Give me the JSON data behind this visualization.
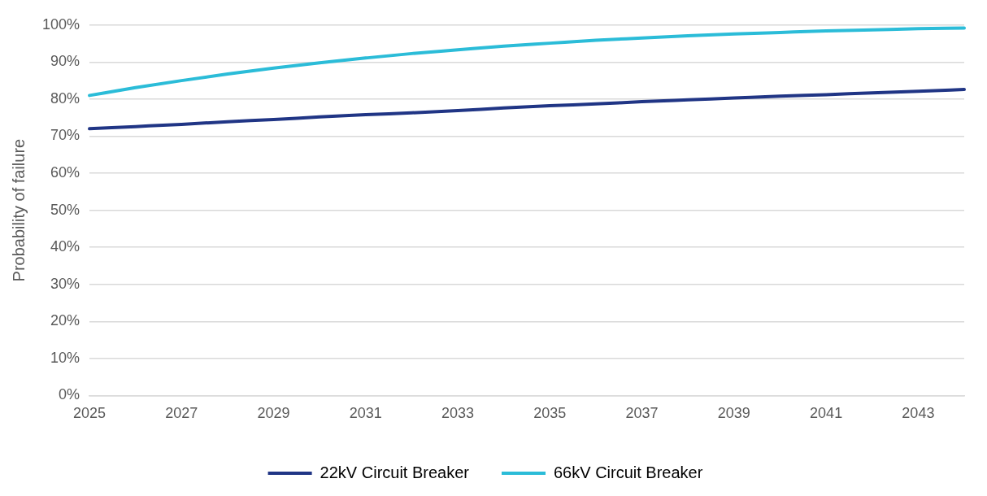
{
  "chart_data": {
    "type": "line",
    "ylabel": "Probability of failure",
    "categories": [
      "2025",
      null,
      "2027",
      null,
      "2029",
      null,
      "2031",
      null,
      "2033",
      null,
      "2035",
      null,
      "2037",
      null,
      "2039",
      null,
      "2041",
      null,
      "2043",
      null
    ],
    "series": [
      {
        "name": "22kV Circuit Breaker",
        "color": "#203585",
        "values": [
          72,
          72.6,
          73.2,
          73.9,
          74.5,
          75.2,
          75.8,
          76.3,
          76.9,
          77.6,
          78.2,
          78.7,
          79.3,
          79.8,
          80.3,
          80.8,
          81.2,
          81.7,
          82.1,
          82.6
        ]
      },
      {
        "name": "66kV Circuit Breaker",
        "color": "#2bbcd8",
        "values": [
          81,
          83.1,
          85,
          86.8,
          88.4,
          89.8,
          91.1,
          92.3,
          93.3,
          94.3,
          95.1,
          95.9,
          96.5,
          97.1,
          97.6,
          98,
          98.4,
          98.7,
          99,
          99.2
        ]
      }
    ],
    "ylim": [
      0,
      100
    ],
    "yticks": [
      {
        "value": 0,
        "label": "0%"
      },
      {
        "value": 10,
        "label": "10%"
      },
      {
        "value": 20,
        "label": "20%"
      },
      {
        "value": 30,
        "label": "30%"
      },
      {
        "value": 40,
        "label": "40%"
      },
      {
        "value": 50,
        "label": "50%"
      },
      {
        "value": 60,
        "label": "60%"
      },
      {
        "value": 70,
        "label": "70%"
      },
      {
        "value": 80,
        "label": "80%"
      },
      {
        "value": 90,
        "label": "90%"
      },
      {
        "value": 100,
        "label": "100%"
      }
    ],
    "grid": "y",
    "legend": "bottom",
    "marker": "none",
    "line_style": "solid"
  }
}
